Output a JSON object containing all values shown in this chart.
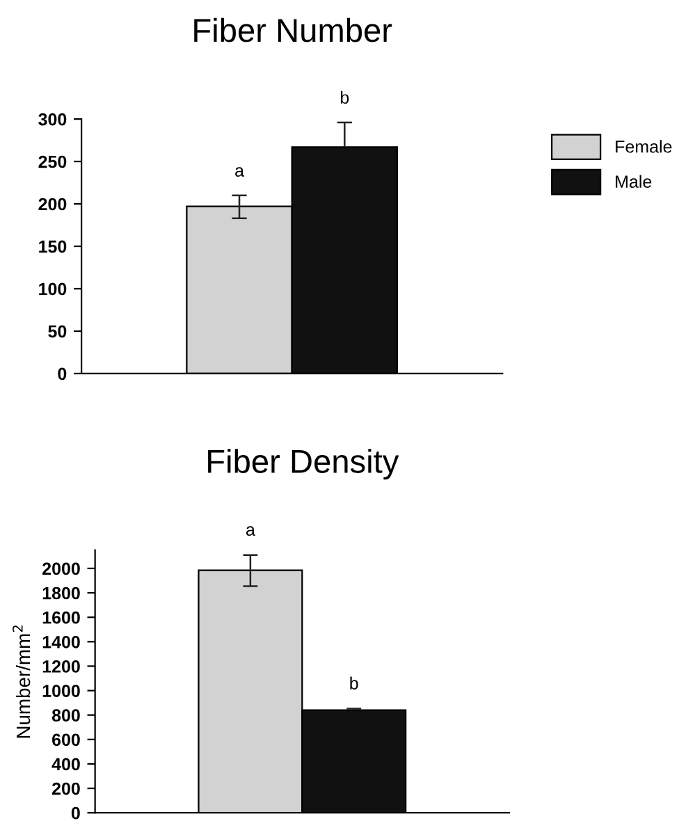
{
  "chart_data": [
    {
      "type": "bar",
      "title": "Fiber Number",
      "categories": [
        null
      ],
      "ylim": [
        0,
        300
      ],
      "yticks": [
        0,
        50,
        100,
        150,
        200,
        250,
        300
      ],
      "tick_labels": "y",
      "grid": false,
      "legend": "top right",
      "series": [
        {
          "name": "Female",
          "color": "#d2d2d2",
          "values": [
            197
          ],
          "errors": [
            [
              183,
              210
            ]
          ]
        },
        {
          "name": "Male",
          "color": "#111111",
          "values": [
            267
          ],
          "errors": [
            [
              267,
              296
            ]
          ]
        }
      ],
      "annotations": [
        "a",
        "b"
      ]
    },
    {
      "type": "bar",
      "title": "Fiber Density",
      "ylabel": "Number/mm$^{2}$",
      "categories": [
        null
      ],
      "ylim": [
        0,
        2150
      ],
      "yticks": [
        0,
        200,
        400,
        600,
        800,
        1000,
        1200,
        1400,
        1600,
        1800,
        2000
      ],
      "tick_labels": "y",
      "grid": false,
      "series": [
        {
          "color": "#d2d2d2",
          "values": [
            1985
          ],
          "errors": [
            [
              1855,
              2110
            ]
          ]
        },
        {
          "color": "#111111",
          "values": [
            840
          ],
          "errors": [
            [
              840,
              852
            ]
          ]
        }
      ],
      "annotations": [
        "a",
        "b"
      ]
    }
  ]
}
